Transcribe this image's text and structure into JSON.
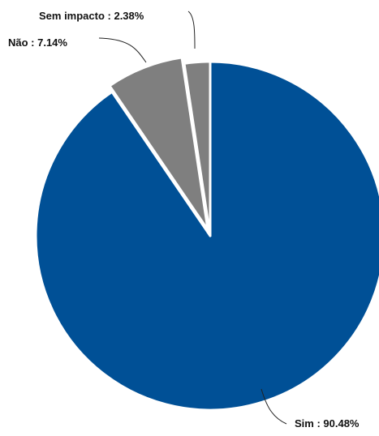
{
  "chart_data": {
    "type": "pie",
    "slices": [
      {
        "label": "Sim",
        "value": 90.48,
        "text": "Sim : 90.48%",
        "color": "#005096"
      },
      {
        "label": "Não",
        "value": 7.14,
        "text": "Não : 7.14%",
        "color": "#7f7f7f"
      },
      {
        "label": "Sem impacto",
        "value": 2.38,
        "text": "Sem impacto : 2.38%",
        "color": "#7f7f7f"
      }
    ],
    "exploded_slices": [
      "Não"
    ],
    "start_angle": "12 o'clock",
    "direction": "clockwise",
    "legend": "none"
  }
}
